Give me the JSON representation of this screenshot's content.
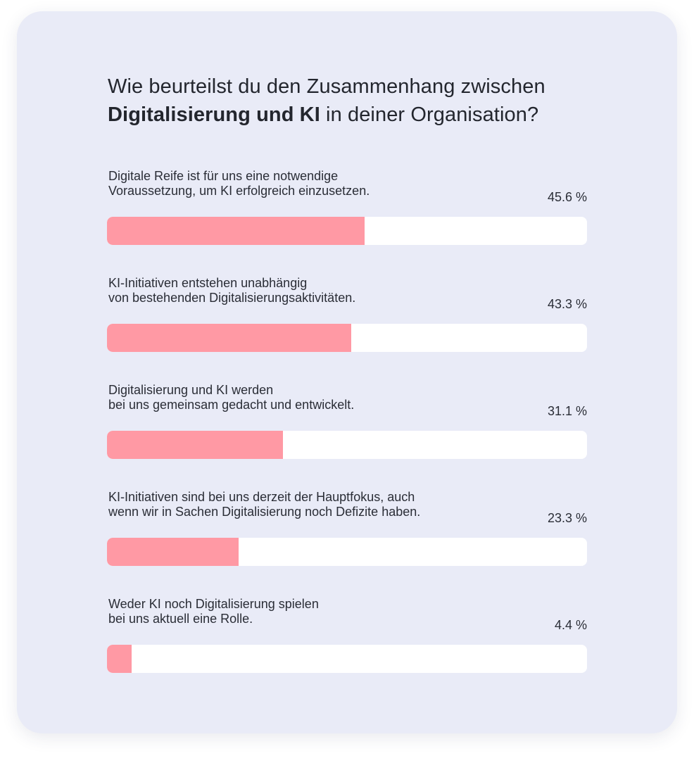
{
  "title": {
    "line1": "Wie beurteilst du den Zusammenhang zwischen",
    "bold": "Digitalisierung und KI",
    "rest": " in deiner Organisation?"
  },
  "colors": {
    "background": "#e9ebf7",
    "bar_fill": "#ff99a4",
    "bar_track": "#ffffff"
  },
  "chart_data": {
    "type": "bar",
    "orientation": "horizontal",
    "xlim": [
      0,
      85
    ],
    "unit": "%",
    "categories": [
      "Digitale Reife ist für uns eine notwendige\nVoraussetzung, um KI erfolgreich einzusetzen.",
      "KI-Initiativen entstehen unabhängig\nvon bestehenden Digitalisierungsaktivitäten.",
      "Digitalisierung und KI werden\nbei uns gemeinsam gedacht und entwickelt.",
      "KI-Initiativen sind bei uns derzeit der Hauptfokus, auch\nwenn wir in Sachen Digitalisierung noch Defizite haben.",
      "Weder KI noch Digitalisierung spielen\nbei uns aktuell eine Rolle."
    ],
    "values": [
      45.6,
      43.3,
      31.1,
      23.3,
      4.4
    ],
    "value_labels": [
      "45.6 %",
      "43.3 %",
      "31.1 %",
      "23.3 %",
      "4.4 %"
    ]
  }
}
